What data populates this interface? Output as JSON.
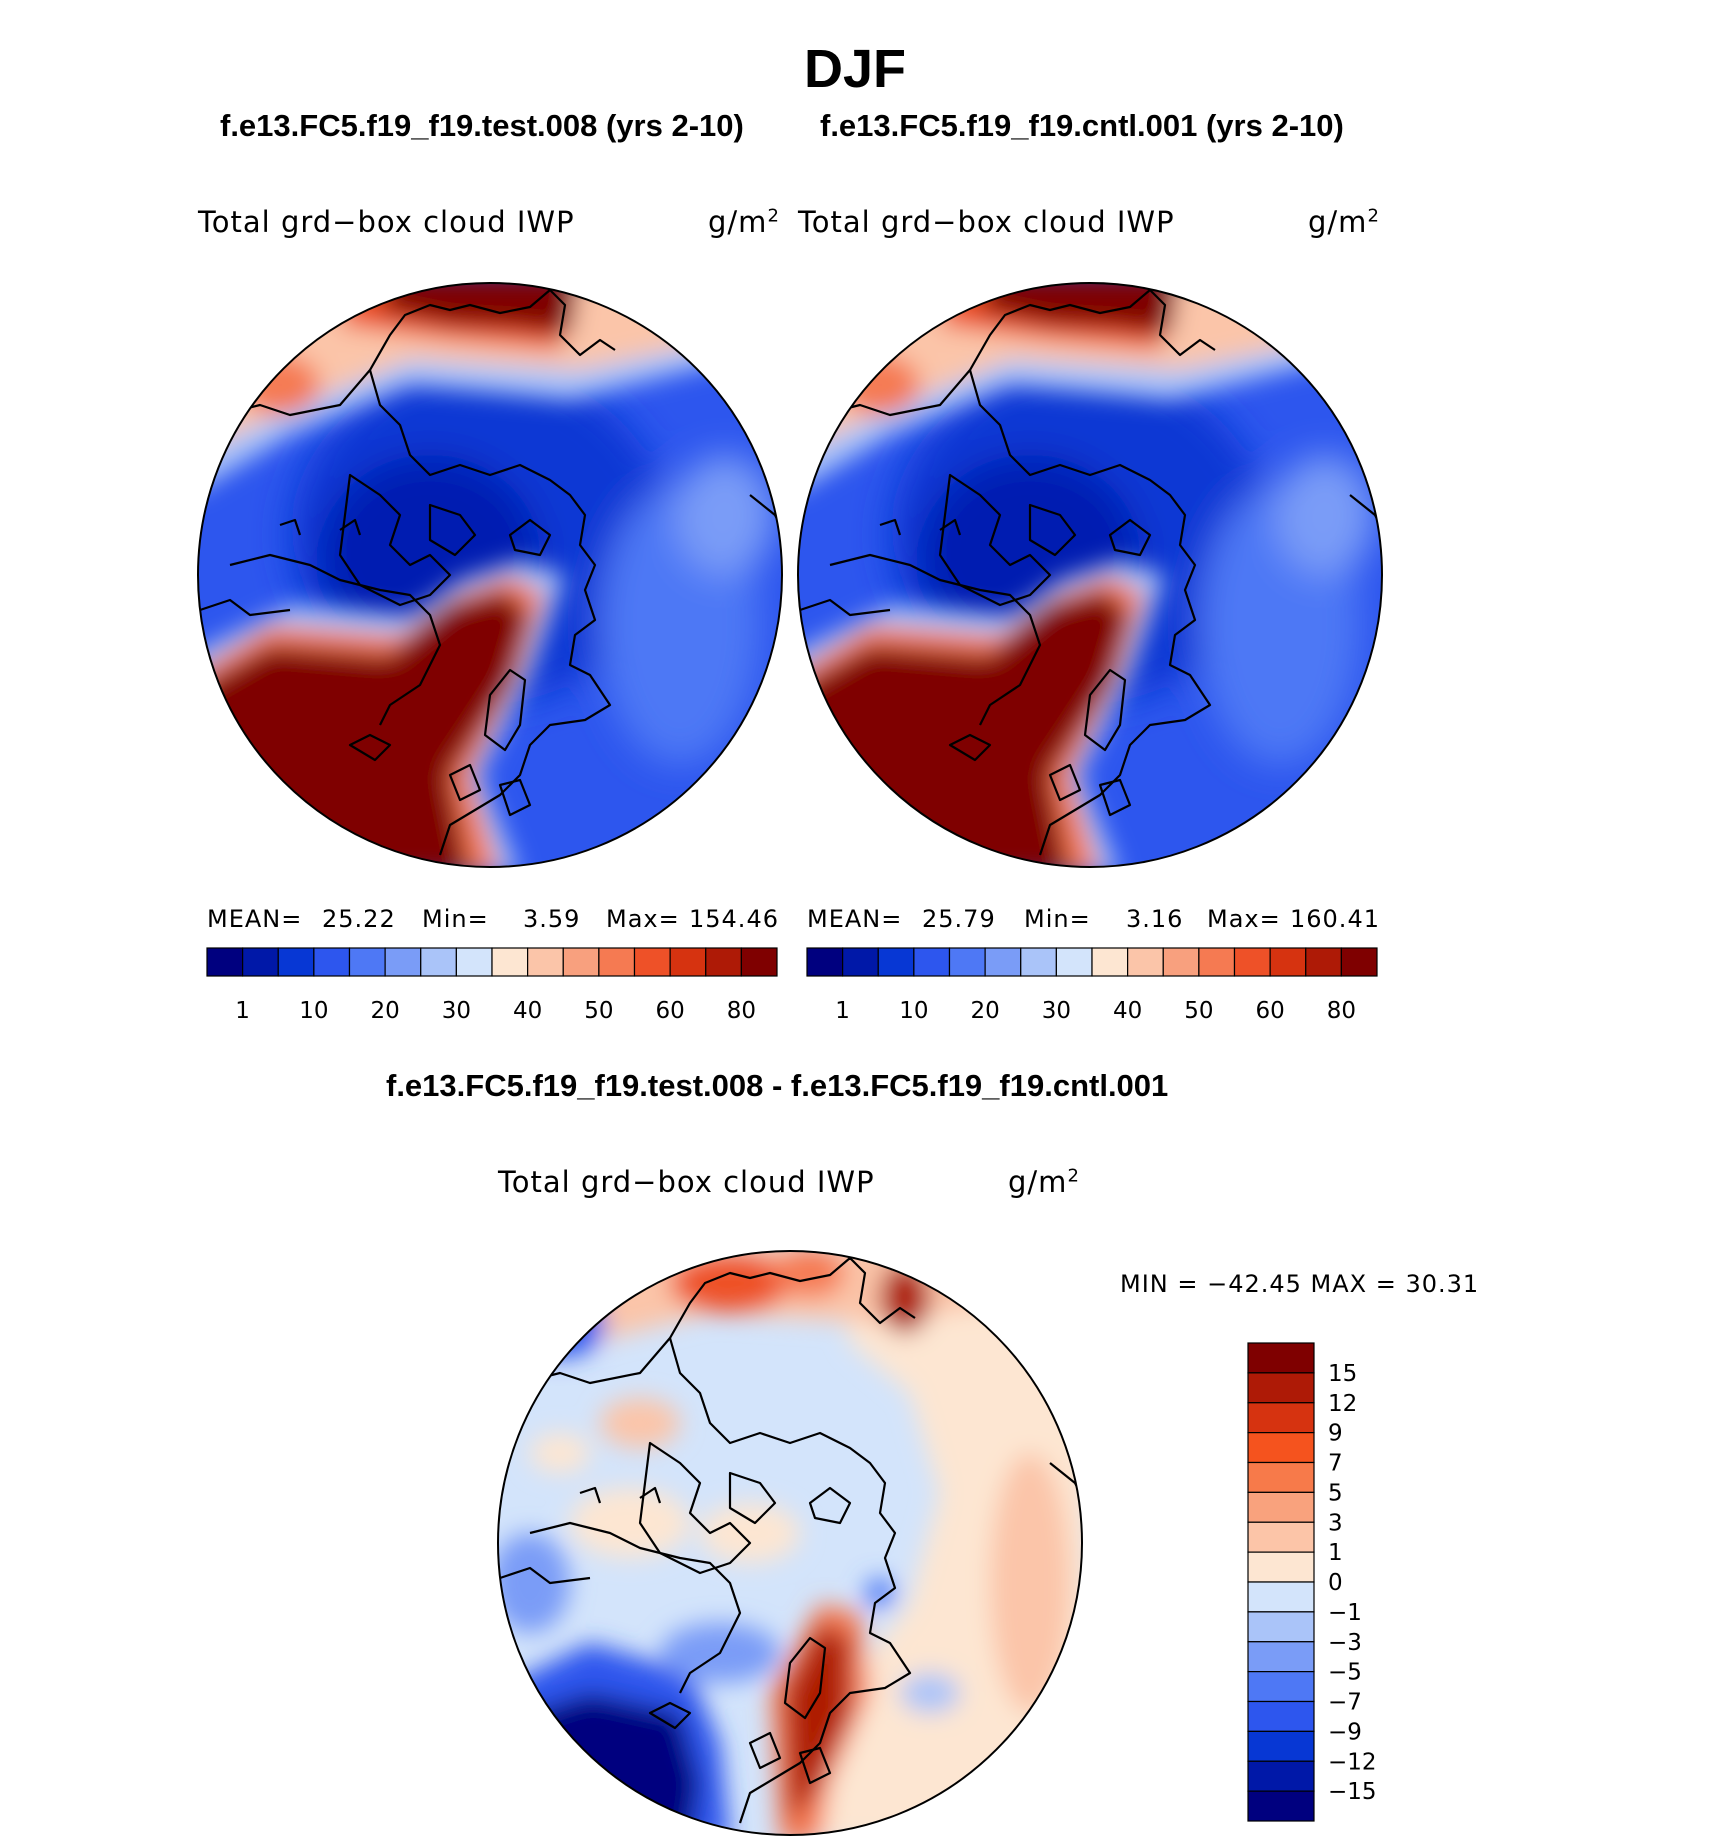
{
  "header": {
    "title": "DJF",
    "case_test": "f.e13.FC5.f19_f19.test.008 (yrs 2-10)",
    "case_cntl": "f.e13.FC5.f19_f19.cntl.001 (yrs 2-10)",
    "diff_title": "f.e13.FC5.f19_f19.test.008 - f.e13.FC5.f19_f19.cntl.001"
  },
  "panels": {
    "test": {
      "variable": "Total grd−box cloud IWP",
      "units": "g/m",
      "units_exp": "2",
      "mean_label": "MEAN=",
      "mean": "25.22",
      "min_label": "Min=",
      "min": "3.59",
      "max_label": "Max=",
      "max": "154.46"
    },
    "cntl": {
      "variable": "Total grd−box cloud IWP",
      "units": "g/m",
      "units_exp": "2",
      "mean_label": "MEAN=",
      "mean": "25.79",
      "min_label": "Min=",
      "min": "3.16",
      "max_label": "Max=",
      "max": "160.41"
    },
    "diff": {
      "variable": "Total grd−box cloud IWP",
      "units": "g/m",
      "units_exp": "2",
      "minmax_text": "MIN = −42.45  MAX =   30.31"
    }
  },
  "chart_data": [
    {
      "type": "heatmap",
      "projection": "north-polar-stereographic",
      "title": "f.e13.FC5.f19_f19.test.008 (yrs 2-10)",
      "variable": "Total grd-box cloud IWP",
      "units": "g/m2",
      "mean": 25.22,
      "min": 3.59,
      "max": 154.46,
      "colorbar_tick_labels": [
        "1",
        "10",
        "20",
        "30",
        "40",
        "50",
        "60",
        "80"
      ],
      "colorbar_colors": [
        "#00007f",
        "#0018a8",
        "#0737d4",
        "#2d56ee",
        "#4e78f5",
        "#7a9cf7",
        "#aac4f9",
        "#d3e4fb",
        "#fde6d2",
        "#fbc5a9",
        "#f8a07e",
        "#f57a52",
        "#ee5128",
        "#d63310",
        "#ae1a06",
        "#7f0000"
      ]
    },
    {
      "type": "heatmap",
      "projection": "north-polar-stereographic",
      "title": "f.e13.FC5.f19_f19.cntl.001 (yrs 2-10)",
      "variable": "Total grd-box cloud IWP",
      "units": "g/m2",
      "mean": 25.79,
      "min": 3.16,
      "max": 160.41,
      "colorbar_tick_labels": [
        "1",
        "10",
        "20",
        "30",
        "40",
        "50",
        "60",
        "80"
      ],
      "colorbar_colors": [
        "#00007f",
        "#0018a8",
        "#0737d4",
        "#2d56ee",
        "#4e78f5",
        "#7a9cf7",
        "#aac4f9",
        "#d3e4fb",
        "#fde6d2",
        "#fbc5a9",
        "#f8a07e",
        "#f57a52",
        "#ee5128",
        "#d63310",
        "#ae1a06",
        "#7f0000"
      ]
    },
    {
      "type": "heatmap",
      "projection": "north-polar-stereographic",
      "title": "f.e13.FC5.f19_f19.test.008 - f.e13.FC5.f19_f19.cntl.001",
      "variable": "Total grd-box cloud IWP",
      "units": "g/m2",
      "min": -42.45,
      "max": 30.31,
      "colorbar_tick_labels": [
        "15",
        "12",
        "9",
        "7",
        "5",
        "3",
        "1",
        "0",
        "−1",
        "−3",
        "−5",
        "−7",
        "−9",
        "−12",
        "−15"
      ],
      "colorbar_colors": [
        "#7f0000",
        "#ae1a06",
        "#d63310",
        "#f5531e",
        "#f77a4a",
        "#f9a27d",
        "#fcc5a8",
        "#fde6d2",
        "#d3e4fb",
        "#aac4f9",
        "#7a9cf7",
        "#4e78f5",
        "#2d56ee",
        "#0737d4",
        "#0018a8",
        "#00007f"
      ]
    }
  ]
}
